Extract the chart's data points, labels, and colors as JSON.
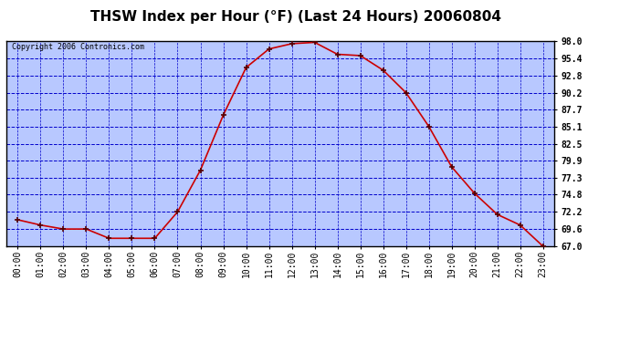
{
  "title": "THSW Index per Hour (°F) (Last 24 Hours) 20060804",
  "copyright": "Copyright 2006 Contronics.com",
  "hours": [
    "00:00",
    "01:00",
    "02:00",
    "03:00",
    "04:00",
    "05:00",
    "06:00",
    "07:00",
    "08:00",
    "09:00",
    "10:00",
    "11:00",
    "12:00",
    "13:00",
    "14:00",
    "15:00",
    "16:00",
    "17:00",
    "18:00",
    "19:00",
    "20:00",
    "21:00",
    "22:00",
    "23:00"
  ],
  "values": [
    71.0,
    70.2,
    69.6,
    69.6,
    68.2,
    68.2,
    68.2,
    72.2,
    78.5,
    86.8,
    94.0,
    96.8,
    97.6,
    97.8,
    96.0,
    95.8,
    93.6,
    90.2,
    85.1,
    79.0,
    75.0,
    71.8,
    70.2,
    67.0
  ],
  "ylim_min": 67.0,
  "ylim_max": 98.0,
  "yticks": [
    98.0,
    95.4,
    92.8,
    90.2,
    87.7,
    85.1,
    82.5,
    79.9,
    77.3,
    74.8,
    72.2,
    69.6,
    67.0
  ],
  "line_color": "#cc0000",
  "marker_color": "#550000",
  "bg_color": "#ffffff",
  "plot_bg": "#b8c8ff",
  "grid_color": "#0000cc",
  "title_fontsize": 11,
  "copyright_fontsize": 6,
  "tick_fontsize": 7,
  "ytick_fontsize": 7
}
